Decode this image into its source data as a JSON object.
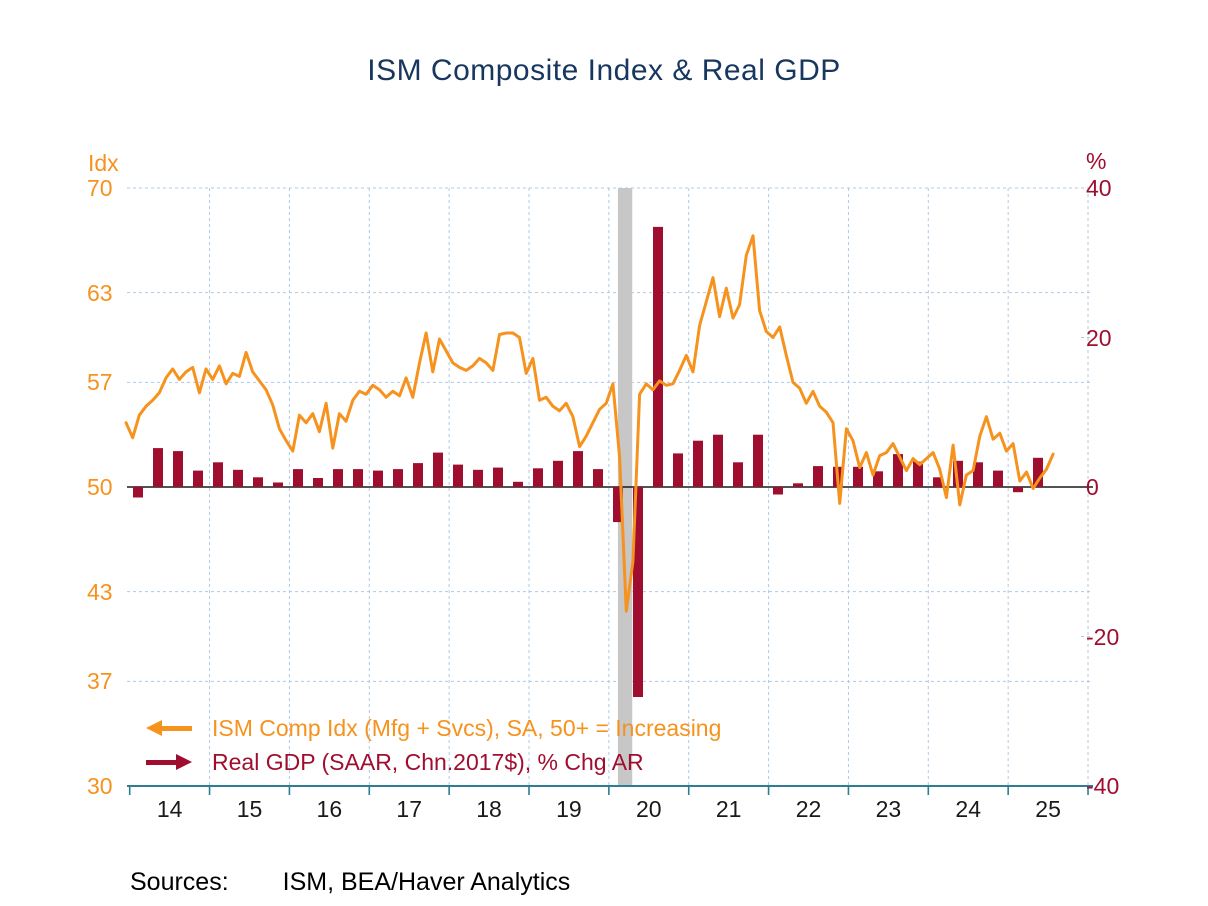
{
  "title": "ISM Composite Index & Real GDP",
  "source_label": "Sources:",
  "source_text": "ISM, BEA/Haver Analytics",
  "colors": {
    "ism_line": "#F6921E",
    "gdp_bar": "#A00E2F",
    "title": "#17375E",
    "gridline": "#AFC9E4",
    "zero_line": "#1A1A1A",
    "x_axis_line": "#2E7D90",
    "recession_band": "#C7C7C7",
    "year_text": "#1A1A1A"
  },
  "legend": [
    {
      "arrow": "left",
      "axis": "left",
      "color": "#F6921E"
    },
    {
      "arrow": "right",
      "axis": "right",
      "color": "#A00E2F"
    }
  ],
  "chart_data": {
    "type": "combo",
    "title": "ISM Composite Index & Real GDP",
    "left_axis": {
      "label": "Idx",
      "ticks": [
        70,
        63,
        57,
        50,
        43,
        37,
        30
      ],
      "range": [
        30,
        70
      ]
    },
    "right_axis": {
      "label": "%",
      "ticks": [
        40,
        20,
        0,
        -20,
        -40
      ],
      "range": [
        -40,
        40
      ]
    },
    "x_axis": {
      "year_labels": [
        "14",
        "15",
        "16",
        "17",
        "18",
        "19",
        "20",
        "21",
        "22",
        "23",
        "24",
        "25"
      ],
      "start_year": 2014
    },
    "gridlines": {
      "horizontal_at_left_ticks": [
        70,
        63,
        57,
        43,
        37
      ],
      "vertical": "year-boundaries",
      "style": "dashed"
    },
    "recession_band": {
      "from": "2020-02",
      "to": "2020-04"
    },
    "series": [
      {
        "name": "ISM Comp Idx (Mfg + Svcs), SA, 50+ = Increasing",
        "type": "line",
        "axis": "left",
        "color": "#F6921E",
        "frequency": "monthly",
        "start": "2014-01",
        "end": "2025-08",
        "values": [
          54.3,
          53.3,
          54.8,
          55.4,
          55.8,
          56.3,
          57.3,
          57.9,
          57.2,
          57.7,
          58.0,
          56.3,
          57.9,
          57.2,
          58.1,
          56.9,
          57.6,
          57.4,
          59.0,
          57.7,
          57.1,
          56.5,
          55.5,
          53.9,
          53.1,
          52.4,
          54.8,
          54.3,
          54.9,
          53.7,
          55.6,
          52.6,
          54.9,
          54.4,
          55.8,
          56.4,
          56.2,
          56.8,
          56.5,
          56.0,
          56.4,
          56.1,
          57.3,
          56.0,
          58.3,
          60.3,
          57.7,
          59.9,
          59.1,
          58.3,
          58.0,
          57.8,
          58.1,
          58.6,
          58.3,
          57.8,
          60.2,
          60.3,
          60.3,
          60.0,
          57.6,
          58.6,
          55.8,
          56.0,
          55.4,
          55.1,
          55.6,
          54.7,
          52.7,
          53.4,
          54.3,
          55.2,
          55.6,
          56.9,
          52.0,
          41.7,
          45.0,
          56.2,
          56.9,
          56.5,
          57.1,
          56.8,
          56.9,
          57.8,
          58.8,
          57.7,
          60.8,
          62.4,
          64.0,
          61.4,
          63.3,
          61.3,
          62.2,
          65.5,
          66.8,
          61.8,
          60.4,
          60.0,
          60.7,
          58.8,
          57.0,
          56.6,
          55.6,
          56.4,
          55.4,
          55.0,
          54.3,
          48.9,
          53.9,
          53.1,
          51.3,
          52.3,
          50.8,
          52.1,
          52.3,
          52.9,
          52.0,
          51.1,
          51.9,
          51.5,
          51.9,
          52.3,
          51.2,
          49.3,
          52.8,
          48.8,
          50.8,
          51.1,
          53.4,
          54.7,
          53.2,
          53.6,
          52.4,
          52.9,
          50.4,
          51.0,
          49.9,
          50.6,
          51.2,
          52.2
        ]
      },
      {
        "name": "Real GDP (SAAR, Chn.2017$), % Chg AR",
        "type": "bar",
        "axis": "right",
        "color": "#A00E2F",
        "frequency": "quarterly",
        "start": "2014-Q1",
        "end": "2025-Q2",
        "values": [
          -1.4,
          5.2,
          4.8,
          2.2,
          3.3,
          2.3,
          1.3,
          0.6,
          2.4,
          1.2,
          2.4,
          2.4,
          2.2,
          2.4,
          3.2,
          4.6,
          3.0,
          2.3,
          2.6,
          0.7,
          2.5,
          3.5,
          4.8,
          2.4,
          -4.7,
          -28.1,
          34.8,
          4.5,
          6.2,
          7.0,
          3.3,
          7.0,
          -1.0,
          0.5,
          2.8,
          2.7,
          2.7,
          2.1,
          4.4,
          3.4,
          1.3,
          3.5,
          3.3,
          2.2,
          -0.7,
          3.9
        ]
      }
    ]
  }
}
